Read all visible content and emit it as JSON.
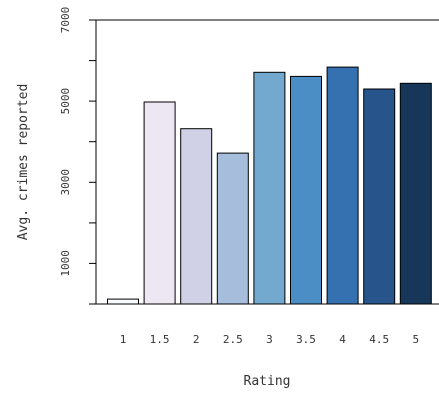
{
  "chart_data": {
    "type": "bar",
    "title": "",
    "xlabel": "Rating",
    "ylabel": "Avg. crimes reported",
    "categories": [
      "1",
      "1.5",
      "2",
      "2.5",
      "3",
      "3.5",
      "4",
      "4.5",
      "5"
    ],
    "values": [
      120,
      4980,
      4320,
      3720,
      5710,
      5610,
      5840,
      5300,
      5440
    ],
    "colors": [
      "#f7fbff",
      "#ece7f2",
      "#d0d1e6",
      "#a6bddb",
      "#74a9cf",
      "#4b8ec5",
      "#3570b0",
      "#26548b",
      "#16375a"
    ],
    "ylim": [
      0,
      7000
    ],
    "yticks": [
      1000,
      3000,
      5000,
      7000
    ],
    "y_minor_ticks": [
      0,
      2000,
      4000,
      6000
    ],
    "grid": false,
    "legend": "none"
  }
}
